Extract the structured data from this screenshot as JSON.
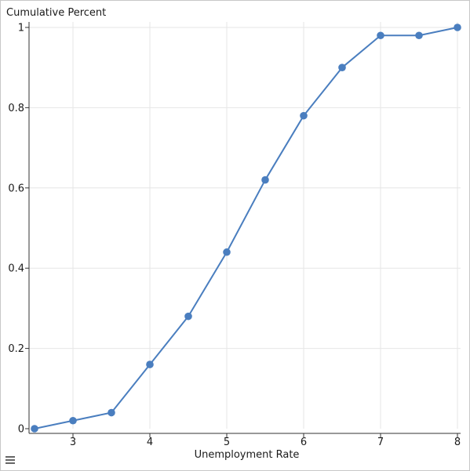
{
  "chart_data": {
    "type": "line",
    "ylabel": "Cumulative Percent",
    "xlabel": "Unemployment Rate",
    "x": [
      2.5,
      3,
      3.5,
      4,
      4.5,
      5,
      5.5,
      6,
      6.5,
      7,
      7.5,
      8
    ],
    "series": [
      {
        "values": [
          0,
          0.02,
          0.04,
          0.16,
          0.28,
          0.44,
          0.62,
          0.78,
          0.9,
          0.98,
          0.98,
          1.0
        ]
      }
    ],
    "xlim": [
      2.5,
      8
    ],
    "ylim": [
      0,
      1
    ],
    "xticks": [
      3,
      4,
      5,
      6,
      7,
      8
    ],
    "yticks": [
      0,
      0.2,
      0.4,
      0.6,
      0.8,
      1
    ],
    "ytick_labels": [
      "0",
      "0.2",
      "0.4",
      "0.6",
      "0.8",
      "1"
    ],
    "grid": true,
    "color": "#4a7ebf"
  },
  "ui": {
    "menu_icon": "menu-icon"
  }
}
